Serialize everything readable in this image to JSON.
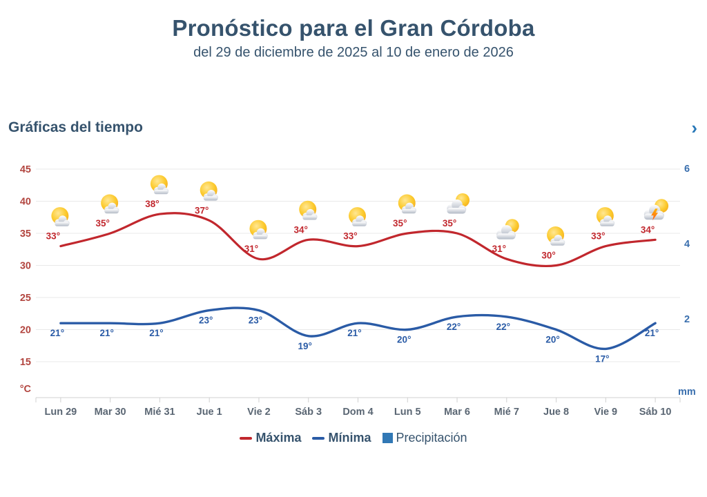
{
  "header": {
    "title": "Pronóstico para el Gran Córdoba",
    "subtitle": "del 29 de diciembre de 2025 al 10 de enero de 2026"
  },
  "section": {
    "title": "Gráficas del tiempo",
    "chevron": "›"
  },
  "chart_data": {
    "type": "line",
    "title": "Gráficas del tiempo",
    "categories": [
      "Lun 29",
      "Mar 30",
      "Mié 31",
      "Jue 1",
      "Vie 2",
      "Sáb 3",
      "Dom 4",
      "Lun 5",
      "Mar 6",
      "Mié 7",
      "Jue 8",
      "Vie 9",
      "Sáb 10"
    ],
    "series": [
      {
        "name": "Máxima",
        "type": "line",
        "color": "#c1272d",
        "unit": "°",
        "values": [
          33,
          35,
          38,
          37,
          31,
          34,
          33,
          35,
          35,
          31,
          30,
          33,
          34
        ]
      },
      {
        "name": "Mínima",
        "type": "line",
        "color": "#2a5ba6",
        "unit": "°",
        "values": [
          21,
          21,
          21,
          23,
          23,
          19,
          21,
          20,
          22,
          22,
          20,
          17,
          21
        ]
      },
      {
        "name": "Precipitación",
        "type": "bar",
        "color": "#3178b5",
        "unit": "mm",
        "values": [
          0,
          0,
          0,
          0,
          0,
          0,
          0,
          0,
          0,
          0,
          0,
          0,
          0
        ]
      }
    ],
    "icons": [
      "sun-cloud",
      "sun-cloud",
      "sun-cloud",
      "sun-cloud",
      "sun-cloud",
      "sun-cloud",
      "sun-cloud",
      "sun-cloud",
      "cloud-sun",
      "cloud-sun",
      "sun-cloud",
      "sun-cloud",
      "storm"
    ],
    "y_left": {
      "label": "°C",
      "ticks": [
        45,
        40,
        35,
        30,
        25,
        20,
        15
      ],
      "range": [
        15,
        45
      ],
      "color": "#b2453f"
    },
    "y_right": {
      "label": "mm",
      "ticks": [
        6,
        4,
        2
      ],
      "range": [
        0,
        6
      ],
      "color": "#3a6fae"
    },
    "x_label_color": "#5a6673",
    "grid": true,
    "gridline_color": "#e9e9e9",
    "axis_line_color": "#d0d0d0",
    "legend_position": "bottom"
  }
}
